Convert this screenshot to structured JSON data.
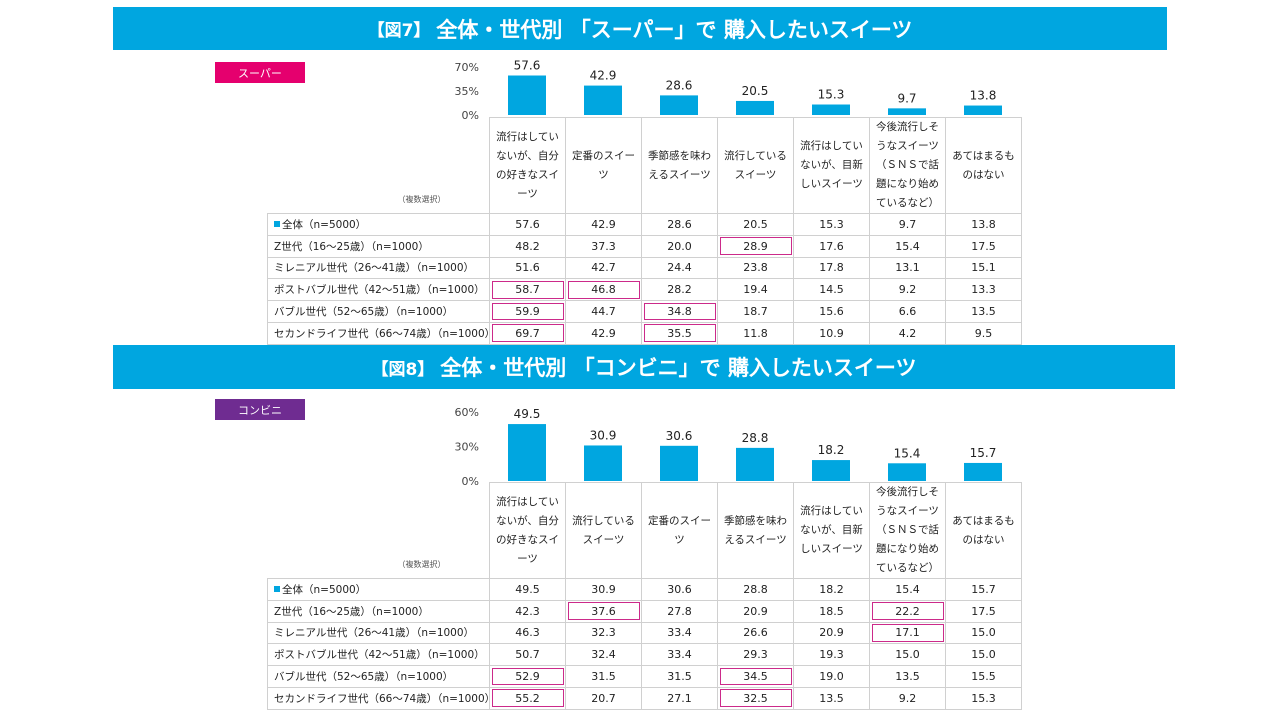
{
  "figures": [
    {
      "fig_label": "【図7】",
      "title": "全体・世代別 「スーパー」で 購入したいスイーツ",
      "tag": "スーパー",
      "tag_color": "#e5006e",
      "note": "（複数選択）",
      "columns": [
        "流行はしていないが、自分の好きなスイーツ",
        "定番のスイーツ",
        "季節感を味わえるスイーツ",
        "流行しているスイーツ",
        "流行はしていないが、目新しいスイーツ",
        "今後流行しそうなスイーツ（ＳＮＳで話題になり始めているなど）",
        "あてはまるものはない"
      ],
      "rows": [
        {
          "label": "全体（n=5000）",
          "values": [
            "57.6",
            "42.9",
            "28.6",
            "20.5",
            "15.3",
            "9.7",
            "13.8"
          ],
          "hl": []
        },
        {
          "label": "Z世代（16～25歳）（n=1000）",
          "values": [
            "48.2",
            "37.3",
            "20.0",
            "28.9",
            "17.6",
            "15.4",
            "17.5"
          ],
          "hl": [
            3
          ]
        },
        {
          "label": "ミレニアル世代（26～41歳）（n=1000）",
          "values": [
            "51.6",
            "42.7",
            "24.4",
            "23.8",
            "17.8",
            "13.1",
            "15.1"
          ],
          "hl": []
        },
        {
          "label": "ポストバブル世代（42～51歳）（n=1000）",
          "values": [
            "58.7",
            "46.8",
            "28.2",
            "19.4",
            "14.5",
            "9.2",
            "13.3"
          ],
          "hl": [
            0,
            1
          ]
        },
        {
          "label": "バブル世代（52～65歳）（n=1000）",
          "values": [
            "59.9",
            "44.7",
            "34.8",
            "18.7",
            "15.6",
            "6.6",
            "13.5"
          ],
          "hl": [
            0,
            2
          ]
        },
        {
          "label": "セカンドライフ世代（66～74歳）（n=1000）",
          "values": [
            "69.7",
            "42.9",
            "35.5",
            "11.8",
            "10.9",
            "4.2",
            "9.5"
          ],
          "hl": [
            0,
            2
          ]
        }
      ],
      "chart_data": {
        "type": "bar",
        "categories": [
          "流行はしていないが、自分の好きなスイーツ",
          "定番のスイーツ",
          "季節感を味わえるスイーツ",
          "流行しているスイーツ",
          "流行はしていないが、目新しいスイーツ",
          "今後流行しそうなスイーツ（ＳＮＳで話題になり始めているなど）",
          "あてはまるものはない"
        ],
        "values": [
          57.6,
          42.9,
          28.6,
          20.5,
          15.3,
          9.7,
          13.8
        ],
        "yticks": [
          "70%",
          "35%",
          "0%"
        ],
        "ylim": [
          0,
          70
        ],
        "grid": false,
        "bar_color": "#00a6e0"
      }
    },
    {
      "fig_label": "【図8】",
      "title": "全体・世代別 「コンビニ」で 購入したいスイーツ",
      "tag": "コンビニ",
      "tag_color": "#6f2c91",
      "note": "（複数選択）",
      "columns": [
        "流行はしていないが、自分の好きなスイーツ",
        "流行しているスイーツ",
        "定番のスイーツ",
        "季節感を味わえるスイーツ",
        "流行はしていないが、目新しいスイーツ",
        "今後流行しそうなスイーツ（ＳＮＳで話題になり始めているなど）",
        "あてはまるものはない"
      ],
      "rows": [
        {
          "label": "全体（n=5000）",
          "values": [
            "49.5",
            "30.9",
            "30.6",
            "28.8",
            "18.2",
            "15.4",
            "15.7"
          ],
          "hl": []
        },
        {
          "label": "Z世代（16～25歳）（n=1000）",
          "values": [
            "42.3",
            "37.6",
            "27.8",
            "20.9",
            "18.5",
            "22.2",
            "17.5"
          ],
          "hl": [
            1,
            5
          ]
        },
        {
          "label": "ミレニアル世代（26～41歳）（n=1000）",
          "values": [
            "46.3",
            "32.3",
            "33.4",
            "26.6",
            "20.9",
            "17.1",
            "15.0"
          ],
          "hl": [
            5
          ]
        },
        {
          "label": "ポストバブル世代（42～51歳）（n=1000）",
          "values": [
            "50.7",
            "32.4",
            "33.4",
            "29.3",
            "19.3",
            "15.0",
            "15.0"
          ],
          "hl": []
        },
        {
          "label": "バブル世代（52～65歳）（n=1000）",
          "values": [
            "52.9",
            "31.5",
            "31.5",
            "34.5",
            "19.0",
            "13.5",
            "15.5"
          ],
          "hl": [
            0,
            3
          ]
        },
        {
          "label": "セカンドライフ世代（66～74歳）（n=1000）",
          "values": [
            "55.2",
            "20.7",
            "27.1",
            "32.5",
            "13.5",
            "9.2",
            "15.3"
          ],
          "hl": [
            0,
            3
          ]
        }
      ],
      "chart_data": {
        "type": "bar",
        "categories": [
          "流行はしていないが、自分の好きなスイーツ",
          "流行しているスイーツ",
          "定番のスイーツ",
          "季節感を味わえるスイーツ",
          "流行はしていないが、目新しいスイーツ",
          "今後流行しそうなスイーツ（ＳＮＳで話題になり始めているなど）",
          "あてはまるものはない"
        ],
        "values": [
          49.5,
          30.9,
          30.6,
          28.8,
          18.2,
          15.4,
          15.7
        ],
        "yticks": [
          "60%",
          "30%",
          "0%"
        ],
        "ylim": [
          0,
          60
        ],
        "grid": false,
        "bar_color": "#00a6e0"
      }
    }
  ]
}
